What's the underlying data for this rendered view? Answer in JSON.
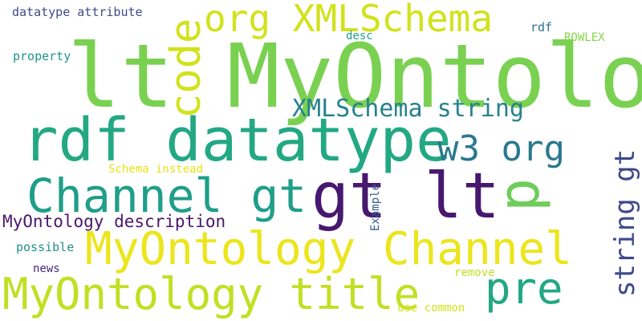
{
  "background": "#ffffff",
  "words": [
    {
      "text": "lt MyOntology",
      "color": "#7ad151"
    },
    {
      "text": "gt lt",
      "color": "#46186e"
    },
    {
      "text": "rdf datatype",
      "color": "#23a884"
    },
    {
      "text": "Channel gt",
      "color": "#1f9e89"
    },
    {
      "text": "MyOntology Channel",
      "color": "#ece51b"
    },
    {
      "text": "MyOntology title",
      "color": "#c2df23"
    },
    {
      "text": "org XMLSchema",
      "color": "#d2e21b"
    },
    {
      "text": "code",
      "color": "#d2e21b"
    },
    {
      "text": "XMLSchema string",
      "color": "#26828e"
    },
    {
      "text": "w3 org",
      "color": "#2a788e"
    },
    {
      "text": "p",
      "color": "#6ccd5a"
    },
    {
      "text": "pre",
      "color": "#22a884"
    },
    {
      "text": "string gt",
      "color": "#3e4a89"
    },
    {
      "text": "MyOntology description",
      "color": "#48176a"
    },
    {
      "text": "datatype attribute",
      "color": "#3e4a89"
    },
    {
      "text": "desc",
      "color": "#1fa187"
    },
    {
      "text": "rdf",
      "color": "#2c728e"
    },
    {
      "text": "ROWLEX",
      "color": "#86d549"
    },
    {
      "text": "property",
      "color": "#1f968b"
    },
    {
      "text": "Schema instead",
      "color": "#e5e419"
    },
    {
      "text": "Example",
      "color": "#365c8d"
    },
    {
      "text": "possible",
      "color": "#21908c"
    },
    {
      "text": "news",
      "color": "#482878"
    },
    {
      "text": "remove",
      "color": "#bddf26"
    },
    {
      "text": "use common",
      "color": "#d5e21a"
    }
  ]
}
